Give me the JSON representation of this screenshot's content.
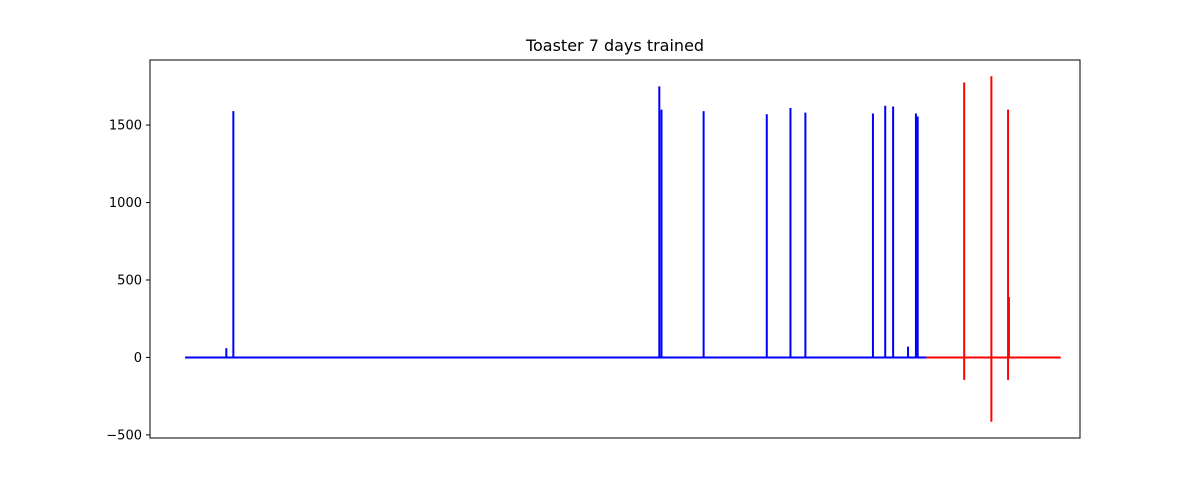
{
  "chart_data": {
    "type": "line",
    "title": "Toaster 7 days trained",
    "xlabel": "",
    "ylabel": "",
    "x_ticks_visible": false,
    "xlim": [
      -0.4,
      10.2
    ],
    "ylim": [
      -520,
      1920
    ],
    "yticks": [
      -500,
      0,
      500,
      1000,
      1500
    ],
    "grid": false,
    "series": [
      {
        "color": "#0000ff",
        "spikes": [
          {
            "x": 0.47,
            "y": 60
          },
          {
            "x": 0.55,
            "y": 1590
          },
          {
            "x": 5.405,
            "y": 1750
          },
          {
            "x": 5.43,
            "y": 1600
          },
          {
            "x": 5.91,
            "y": 1590
          },
          {
            "x": 6.63,
            "y": 1570
          },
          {
            "x": 6.9,
            "y": 1610
          },
          {
            "x": 7.07,
            "y": 1580
          },
          {
            "x": 7.84,
            "y": 1575
          },
          {
            "x": 7.98,
            "y": 1625
          },
          {
            "x": 8.07,
            "y": 1620
          },
          {
            "x": 8.24,
            "y": 70
          },
          {
            "x": 8.33,
            "y": 1575
          },
          {
            "x": 8.35,
            "y": 1555
          }
        ],
        "x_start": 0,
        "x_end": 8.45,
        "baseline": 0
      },
      {
        "color": "#ff0000",
        "spikes": [
          {
            "x": 8.88,
            "y": 1775,
            "low": -145
          },
          {
            "x": 9.19,
            "y": 1815,
            "low": -415
          },
          {
            "x": 9.38,
            "y": 1600,
            "low": -145
          },
          {
            "x": 9.39,
            "y": 390,
            "low": 0
          }
        ],
        "x_start": 8.45,
        "x_end": 9.98,
        "baseline": 0
      }
    ]
  }
}
